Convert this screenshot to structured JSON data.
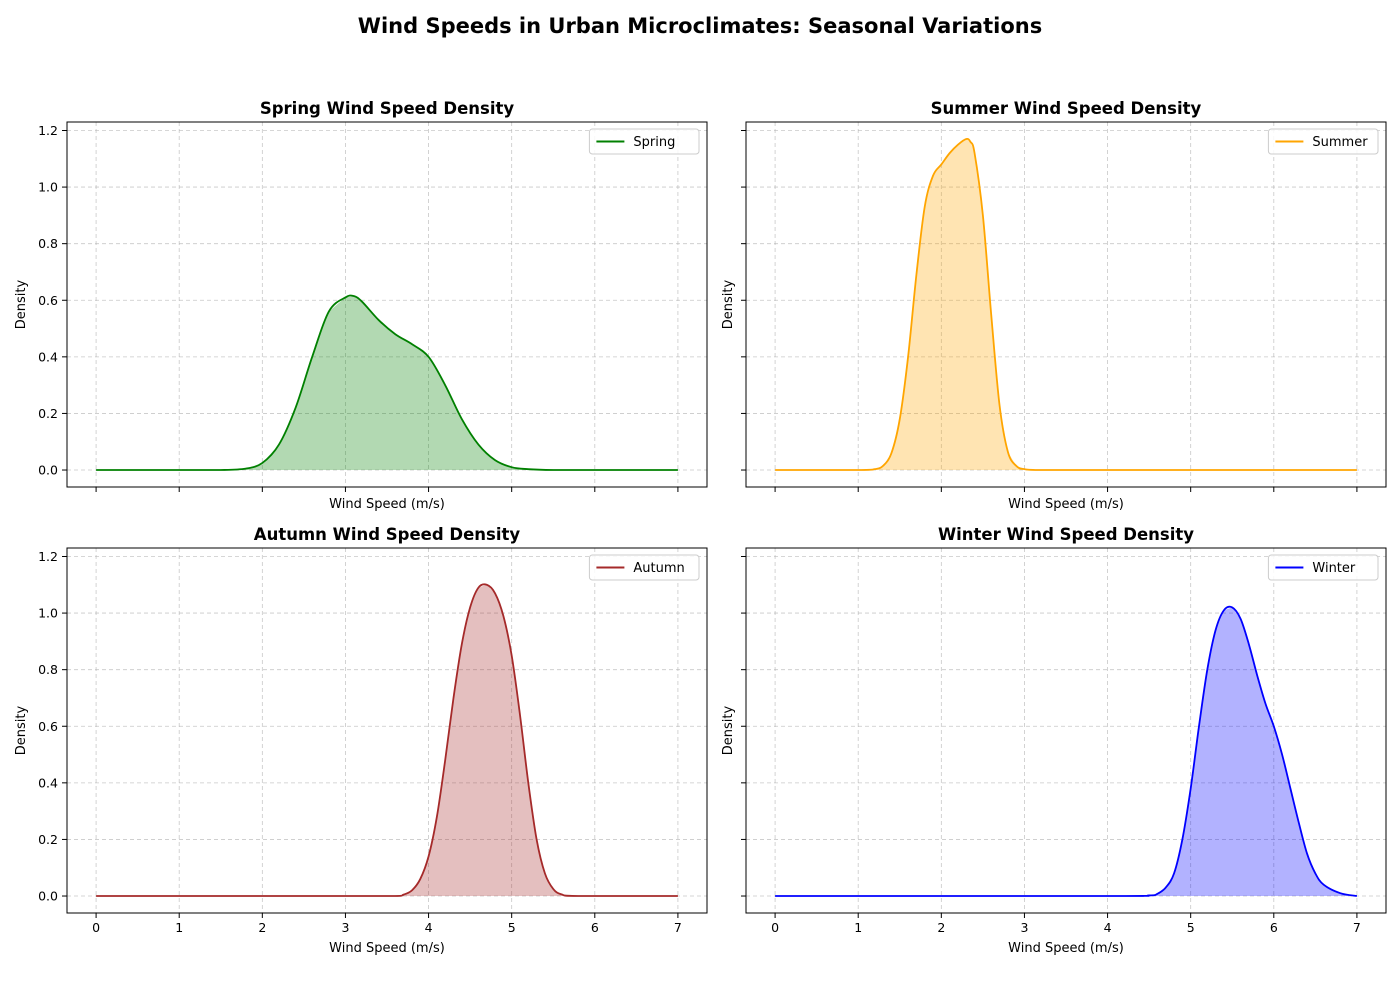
{
  "figure": {
    "title": "Wind Speeds in Urban Microclimates: Seasonal Variations"
  },
  "chart_data": [
    {
      "type": "area",
      "title": "Spring Wind Speed Density",
      "xlabel": "Wind Speed (m/s)",
      "ylabel": "Density",
      "xlim": [
        0,
        7
      ],
      "ylim": [
        0,
        1.2
      ],
      "xticks": [
        0,
        1,
        2,
        3,
        4,
        5,
        6,
        7
      ],
      "yticks": [
        0.0,
        0.2,
        0.4,
        0.6,
        0.8,
        1.0,
        1.2
      ],
      "show_xtick_labels": false,
      "grid": true,
      "legend_position": "top-right",
      "color": "#008000",
      "fill_color": "#008000",
      "series": [
        {
          "name": "Spring",
          "x": [
            0,
            1.0,
            1.5,
            1.8,
            2.0,
            2.2,
            2.4,
            2.6,
            2.8,
            3.0,
            3.1,
            3.2,
            3.4,
            3.6,
            3.8,
            4.0,
            4.2,
            4.4,
            4.6,
            4.8,
            5.0,
            5.2,
            5.5,
            6.0,
            7.0
          ],
          "y": [
            0.0,
            0.0,
            0.0,
            0.005,
            0.025,
            0.09,
            0.22,
            0.4,
            0.56,
            0.61,
            0.615,
            0.595,
            0.53,
            0.48,
            0.445,
            0.4,
            0.3,
            0.18,
            0.09,
            0.035,
            0.01,
            0.003,
            0.0,
            0.0,
            0.0
          ]
        }
      ]
    },
    {
      "type": "area",
      "title": "Summer Wind Speed Density",
      "xlabel": "Wind Speed (m/s)",
      "ylabel": "Density",
      "xlim": [
        0,
        7
      ],
      "ylim": [
        0,
        1.2
      ],
      "xticks": [
        0,
        1,
        2,
        3,
        4,
        5,
        6,
        7
      ],
      "yticks": [
        0.0,
        0.2,
        0.4,
        0.6,
        0.8,
        1.0,
        1.2
      ],
      "show_xtick_labels": false,
      "show_ytick_labels": false,
      "grid": true,
      "legend_position": "top-right",
      "color": "#FFA500",
      "fill_color": "#FFA500",
      "series": [
        {
          "name": "Summer",
          "x": [
            0,
            1.0,
            1.2,
            1.3,
            1.4,
            1.5,
            1.6,
            1.7,
            1.8,
            1.9,
            2.0,
            2.1,
            2.2,
            2.3,
            2.35,
            2.4,
            2.5,
            2.6,
            2.7,
            2.8,
            2.9,
            3.0,
            3.2,
            4.0,
            7.0
          ],
          "y": [
            0.0,
            0.0,
            0.003,
            0.015,
            0.06,
            0.18,
            0.4,
            0.69,
            0.93,
            1.04,
            1.08,
            1.12,
            1.15,
            1.17,
            1.16,
            1.12,
            0.9,
            0.55,
            0.23,
            0.065,
            0.015,
            0.003,
            0.0,
            0.0,
            0.0
          ]
        }
      ]
    },
    {
      "type": "area",
      "title": "Autumn Wind Speed Density",
      "xlabel": "Wind Speed (m/s)",
      "ylabel": "Density",
      "xlim": [
        0,
        7
      ],
      "ylim": [
        0,
        1.2
      ],
      "xticks": [
        0,
        1,
        2,
        3,
        4,
        5,
        6,
        7
      ],
      "yticks": [
        0.0,
        0.2,
        0.4,
        0.6,
        0.8,
        1.0,
        1.2
      ],
      "grid": true,
      "legend_position": "top-right",
      "color": "#A52A2A",
      "fill_color": "#A52A2A",
      "series": [
        {
          "name": "Autumn",
          "x": [
            0,
            3.0,
            3.6,
            3.7,
            3.8,
            3.9,
            4.0,
            4.1,
            4.2,
            4.3,
            4.4,
            4.5,
            4.6,
            4.7,
            4.8,
            4.9,
            5.0,
            5.1,
            5.2,
            5.3,
            5.4,
            5.5,
            5.6,
            5.8,
            7.0
          ],
          "y": [
            0.0,
            0.0,
            0.0,
            0.005,
            0.02,
            0.06,
            0.14,
            0.28,
            0.48,
            0.7,
            0.89,
            1.02,
            1.09,
            1.1,
            1.07,
            0.99,
            0.85,
            0.64,
            0.4,
            0.2,
            0.08,
            0.025,
            0.006,
            0.0,
            0.0
          ]
        }
      ]
    },
    {
      "type": "area",
      "title": "Winter Wind Speed Density",
      "xlabel": "Wind Speed (m/s)",
      "ylabel": "Density",
      "xlim": [
        0,
        7
      ],
      "ylim": [
        0,
        1.2
      ],
      "xticks": [
        0,
        1,
        2,
        3,
        4,
        5,
        6,
        7
      ],
      "yticks": [
        0.0,
        0.2,
        0.4,
        0.6,
        0.8,
        1.0,
        1.2
      ],
      "show_ytick_labels": false,
      "grid": true,
      "legend_position": "top-right",
      "color": "#0000FF",
      "fill_color": "#0000FF",
      "series": [
        {
          "name": "Winter",
          "x": [
            0,
            4.0,
            4.5,
            4.6,
            4.7,
            4.8,
            4.9,
            5.0,
            5.1,
            5.2,
            5.3,
            5.4,
            5.5,
            5.6,
            5.7,
            5.8,
            5.9,
            6.0,
            6.1,
            6.2,
            6.3,
            6.4,
            6.5,
            6.6,
            6.8,
            7.0
          ],
          "y": [
            0.0,
            0.0,
            0.002,
            0.008,
            0.03,
            0.08,
            0.2,
            0.38,
            0.6,
            0.8,
            0.94,
            1.01,
            1.02,
            0.98,
            0.89,
            0.78,
            0.68,
            0.6,
            0.5,
            0.38,
            0.26,
            0.15,
            0.08,
            0.04,
            0.01,
            0.0
          ]
        }
      ]
    }
  ]
}
